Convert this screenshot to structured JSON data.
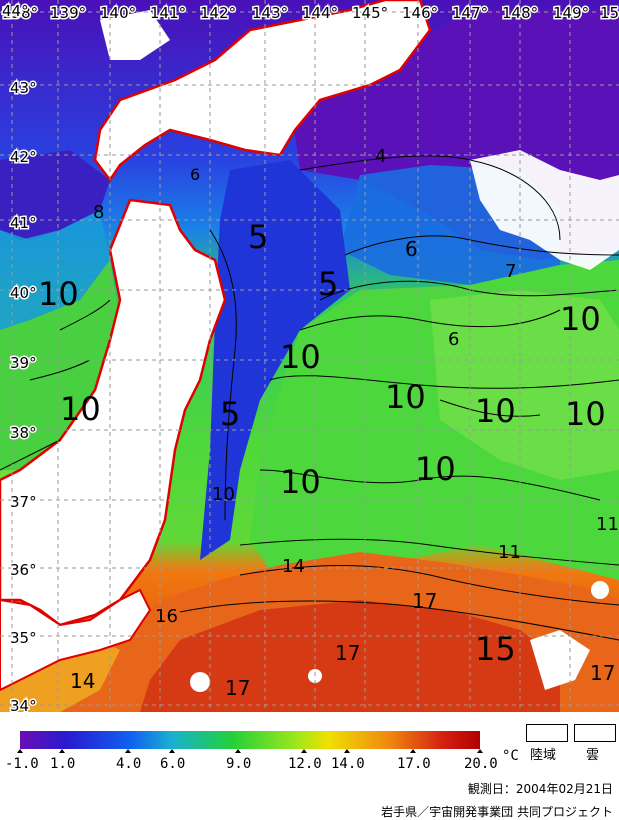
{
  "map": {
    "longitude_labels": [
      "138°",
      "139°",
      "140°",
      "141°",
      "142°",
      "143°",
      "144°",
      "145°",
      "146°",
      "147°",
      "148°",
      "149°",
      "15"
    ],
    "latitude_labels": [
      "44°",
      "43°",
      "42°",
      "41°",
      "40°",
      "39°",
      "38°",
      "37°",
      "36°",
      "35°",
      "34°"
    ],
    "contour_labels": [
      "4",
      "5",
      "5",
      "5",
      "6",
      "6",
      "6",
      "7",
      "8",
      "10",
      "10",
      "10",
      "10",
      "10",
      "10",
      "10",
      "10",
      "10",
      "10",
      "11",
      "11",
      "14",
      "14",
      "15",
      "16",
      "17",
      "17",
      "17",
      "17"
    ]
  },
  "legend": {
    "ticks": [
      "-1.0",
      "1.0",
      "4.0",
      "6.0",
      "9.0",
      "12.0",
      "14.0",
      "17.0",
      "20.0"
    ],
    "unit": "°C",
    "colors": [
      "#6a0fb3",
      "#2a1ad0",
      "#1060f0",
      "#19b0d0",
      "#22d03a",
      "#9be81a",
      "#f0e000",
      "#f08a10",
      "#d52010",
      "#b00000"
    ],
    "land_label": "陸域",
    "cloud_label": "雲"
  },
  "footer": {
    "observation_date": "観測日：2004年02月21日",
    "credit": "岩手県／宇宙開発事業団 共同プロジェクト"
  }
}
